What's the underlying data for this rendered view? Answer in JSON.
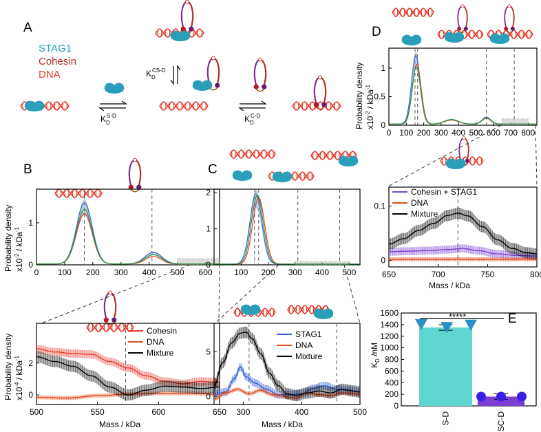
{
  "panel_labels": {
    "A": "A",
    "B": "B",
    "C": "C",
    "D": "D",
    "E": "E"
  },
  "legend_A": {
    "stag1": "STAG1",
    "cohesin": "Cohesin",
    "dna": "DNA"
  },
  "colors": {
    "stag1": "#2a9fba",
    "cohesin": "#b52a1e",
    "dna": "#e8392a",
    "teal": "#5dd6d0",
    "purple": "#7a3fd1",
    "blue_marker": "#2a8fc6",
    "violet_marker": "#3a1fe6",
    "loop_purple": "#7b2b8b"
  },
  "kd_labels": {
    "cs_main": "K",
    "cs_sub": "D",
    "cs_sup": "CS-D",
    "sd_main": "K",
    "sd_sub": "D",
    "sd_sup": "S-D",
    "cd_main": "K",
    "cd_sub": "D",
    "cd_sup": "C-D"
  },
  "axis_text": {
    "prob_density": "Probability density",
    "x10m2": "x10",
    "exp_m2": "-2",
    "x10m4": "x10",
    "exp_m4": "-4",
    "per_kda": "/ kDa",
    "exp_m1": "-1",
    "mass_kda": "Mass / kDa",
    "kd_nm": "K",
    "kd_sub": "D",
    "kd_unit": "/nM"
  },
  "significance": "*****",
  "chart_data": [
    {
      "id": "B_top",
      "type": "line",
      "xlabel": "Mass / kDa",
      "ylabel": "Probability density x10^-2 / kDa^-1",
      "xlim": [
        0,
        650
      ],
      "ylim": [
        0,
        1.8
      ],
      "xticks": [
        0,
        100,
        200,
        300,
        400,
        500,
        600
      ],
      "yticks": [
        0,
        1
      ],
      "vlines": [
        170,
        410
      ],
      "series": [
        {
          "name": "Cohesin",
          "peaks": [
            [
              170,
              1.45,
              28
            ],
            [
              415,
              0.28,
              30
            ]
          ]
        },
        {
          "name": "DNA",
          "peaks": [
            [
              170,
              1.2,
              28
            ],
            [
              415,
              0.18,
              28
            ]
          ]
        },
        {
          "name": "Mixture",
          "peaks": [
            [
              170,
              1.3,
              28
            ],
            [
              415,
              0.22,
              30
            ]
          ]
        }
      ]
    },
    {
      "id": "B_bottom",
      "type": "line",
      "xlabel": "Mass / kDa",
      "ylabel": "Probability density x10^-4 / kDa^-1",
      "xlim": [
        500,
        650
      ],
      "ylim": [
        -0.6,
        4.5
      ],
      "xticks": [
        500,
        550,
        600,
        650
      ],
      "yticks": [
        0,
        2
      ],
      "vline": 573,
      "legend": [
        "Cohesin",
        "DNA",
        "Mixture"
      ],
      "series": [
        {
          "name": "Cohesin",
          "values": [
            [
              500,
              2.9
            ],
            [
              515,
              2.7
            ],
            [
              530,
              2.6
            ],
            [
              545,
              2.55
            ],
            [
              560,
              2.1
            ],
            [
              575,
              1.7
            ],
            [
              590,
              1.2
            ],
            [
              605,
              0.85
            ],
            [
              620,
              0.7
            ],
            [
              635,
              0.85
            ],
            [
              650,
              0.8
            ]
          ]
        },
        {
          "name": "DNA",
          "values": [
            [
              500,
              -0.15
            ],
            [
              525,
              -0.2
            ],
            [
              550,
              -0.05
            ],
            [
              575,
              0.05
            ],
            [
              600,
              0.1
            ],
            [
              625,
              0.1
            ],
            [
              650,
              0.05
            ]
          ]
        },
        {
          "name": "Mixture",
          "values": [
            [
              500,
              2.4
            ],
            [
              515,
              2.1
            ],
            [
              530,
              1.8
            ],
            [
              545,
              1.2
            ],
            [
              560,
              0.5
            ],
            [
              575,
              0.0
            ],
            [
              590,
              0.3
            ],
            [
              605,
              0.55
            ],
            [
              620,
              0.5
            ],
            [
              635,
              0.4
            ],
            [
              650,
              0.5
            ]
          ]
        }
      ]
    },
    {
      "id": "C_top",
      "type": "line",
      "xlabel": "Mass / kDa",
      "ylabel": "Probability density x10^-2 / kDa^-1",
      "xlim": [
        0,
        540
      ],
      "ylim": [
        0,
        2.1
      ],
      "xticks": [
        100,
        200,
        300,
        400,
        500
      ],
      "yticks": [
        0,
        1,
        2
      ],
      "vlines": [
        150,
        165,
        310,
        465
      ],
      "series": [
        {
          "name": "STAG1",
          "peaks": [
            [
              155,
              1.95,
              22
            ]
          ]
        },
        {
          "name": "DNA",
          "peaks": [
            [
              165,
              1.85,
              22
            ]
          ]
        },
        {
          "name": "Mixture",
          "peaks": [
            [
              160,
              1.9,
              22
            ]
          ]
        }
      ]
    },
    {
      "id": "C_bottom",
      "type": "line",
      "xlabel": "Mass / kDa",
      "ylabel": "",
      "xlim": [
        250,
        500
      ],
      "ylim": [
        -0.9,
        8.2
      ],
      "xticks": [
        300,
        400,
        500
      ],
      "yticks": [
        0,
        5
      ],
      "vlines": [
        310,
        460
      ],
      "legend": [
        "STAG1",
        "DNA",
        "Mixture"
      ],
      "series": [
        {
          "name": "STAG1",
          "values": [
            [
              250,
              0.2
            ],
            [
              270,
              0.5
            ],
            [
              285,
              2.0
            ],
            [
              295,
              3.3
            ],
            [
              305,
              2.2
            ],
            [
              320,
              1.5
            ],
            [
              340,
              0.8
            ],
            [
              360,
              0.2
            ],
            [
              380,
              0.2
            ],
            [
              400,
              0.3
            ],
            [
              420,
              0.9
            ],
            [
              440,
              1.2
            ],
            [
              460,
              0.8
            ],
            [
              480,
              0.7
            ],
            [
              500,
              0.5
            ]
          ]
        },
        {
          "name": "DNA",
          "values": [
            [
              250,
              -0.3
            ],
            [
              270,
              0.4
            ],
            [
              290,
              0.8
            ],
            [
              310,
              0.3
            ],
            [
              330,
              0.7
            ],
            [
              350,
              0.2
            ],
            [
              370,
              0.0
            ],
            [
              390,
              -0.2
            ],
            [
              410,
              0.4
            ],
            [
              430,
              0.2
            ],
            [
              450,
              0.1
            ],
            [
              470,
              0.4
            ],
            [
              490,
              0.3
            ],
            [
              500,
              0.2
            ]
          ]
        },
        {
          "name": "Mixture",
          "values": [
            [
              250,
              1.2
            ],
            [
              265,
              3.8
            ],
            [
              280,
              6.0
            ],
            [
              295,
              7.1
            ],
            [
              305,
              7.2
            ],
            [
              315,
              6.5
            ],
            [
              330,
              4.8
            ],
            [
              345,
              2.6
            ],
            [
              360,
              1.2
            ],
            [
              375,
              0.3
            ],
            [
              390,
              0.1
            ],
            [
              410,
              0.4
            ],
            [
              430,
              0.6
            ],
            [
              450,
              0.4
            ],
            [
              470,
              0.8
            ],
            [
              490,
              0.6
            ],
            [
              500,
              0.5
            ]
          ]
        }
      ]
    },
    {
      "id": "D_top",
      "type": "line",
      "xlabel": "",
      "ylabel": "Probability density x10^-2 / kDa^-1",
      "xlim": [
        0,
        850
      ],
      "ylim": [
        0,
        1.35
      ],
      "xticks": [
        0,
        100,
        200,
        300,
        400,
        500,
        600,
        700,
        800
      ],
      "yticks": [
        0,
        0.5,
        1
      ],
      "vlines": [
        150,
        165,
        560,
        720
      ],
      "series": [
        {
          "name": "Cohesin + STAG1",
          "peaks": [
            [
              155,
              1.2,
              25
            ],
            [
              360,
              0.08,
              40
            ],
            [
              560,
              0.12,
              25
            ]
          ]
        },
        {
          "name": "DNA",
          "peaks": [
            [
              160,
              1.05,
              25
            ],
            [
              360,
              0.07,
              40
            ],
            [
              560,
              0.1,
              25
            ]
          ]
        },
        {
          "name": "Mixture",
          "peaks": [
            [
              158,
              1.0,
              25
            ],
            [
              360,
              0.08,
              40
            ],
            [
              560,
              0.11,
              25
            ]
          ]
        }
      ]
    },
    {
      "id": "D_bottom",
      "type": "line",
      "xlabel": "Mass / kDa",
      "ylabel": "",
      "xlim": [
        650,
        800
      ],
      "ylim": [
        -0.012,
        0.135
      ],
      "xticks": [
        650,
        700,
        750,
        800
      ],
      "yticks": [
        0,
        0.1
      ],
      "vline": 720,
      "legend": [
        "Cohesin + STAG1",
        "DNA",
        "Mixture"
      ],
      "series": [
        {
          "name": "Cohesin + STAG1",
          "values": [
            [
              650,
              0.016
            ],
            [
              670,
              0.017
            ],
            [
              690,
              0.018
            ],
            [
              710,
              0.02
            ],
            [
              725,
              0.022
            ],
            [
              740,
              0.018
            ],
            [
              760,
              0.012
            ],
            [
              780,
              0.009
            ],
            [
              800,
              0.008
            ]
          ]
        },
        {
          "name": "DNA",
          "values": [
            [
              650,
              0.002
            ],
            [
              700,
              0.002
            ],
            [
              750,
              0.002
            ],
            [
              800,
              0.002
            ]
          ]
        },
        {
          "name": "Mixture",
          "values": [
            [
              650,
              0.03
            ],
            [
              665,
              0.04
            ],
            [
              680,
              0.055
            ],
            [
              695,
              0.068
            ],
            [
              710,
              0.083
            ],
            [
              720,
              0.087
            ],
            [
              730,
              0.082
            ],
            [
              745,
              0.062
            ],
            [
              760,
              0.038
            ],
            [
              775,
              0.022
            ],
            [
              790,
              0.014
            ],
            [
              800,
              0.012
            ]
          ]
        }
      ]
    },
    {
      "id": "E",
      "type": "bar",
      "categories": [
        "S-D",
        "SC-D"
      ],
      "values": [
        1350,
        160
      ],
      "points": [
        [
          1400,
          1350,
          1390
        ],
        [
          160,
          160,
          160
        ]
      ],
      "ylim": [
        0,
        1600
      ],
      "yticks": [
        0,
        200,
        400,
        600,
        800,
        1000,
        1200,
        1400,
        1600
      ],
      "ylabel": "K_D /nM"
    }
  ]
}
